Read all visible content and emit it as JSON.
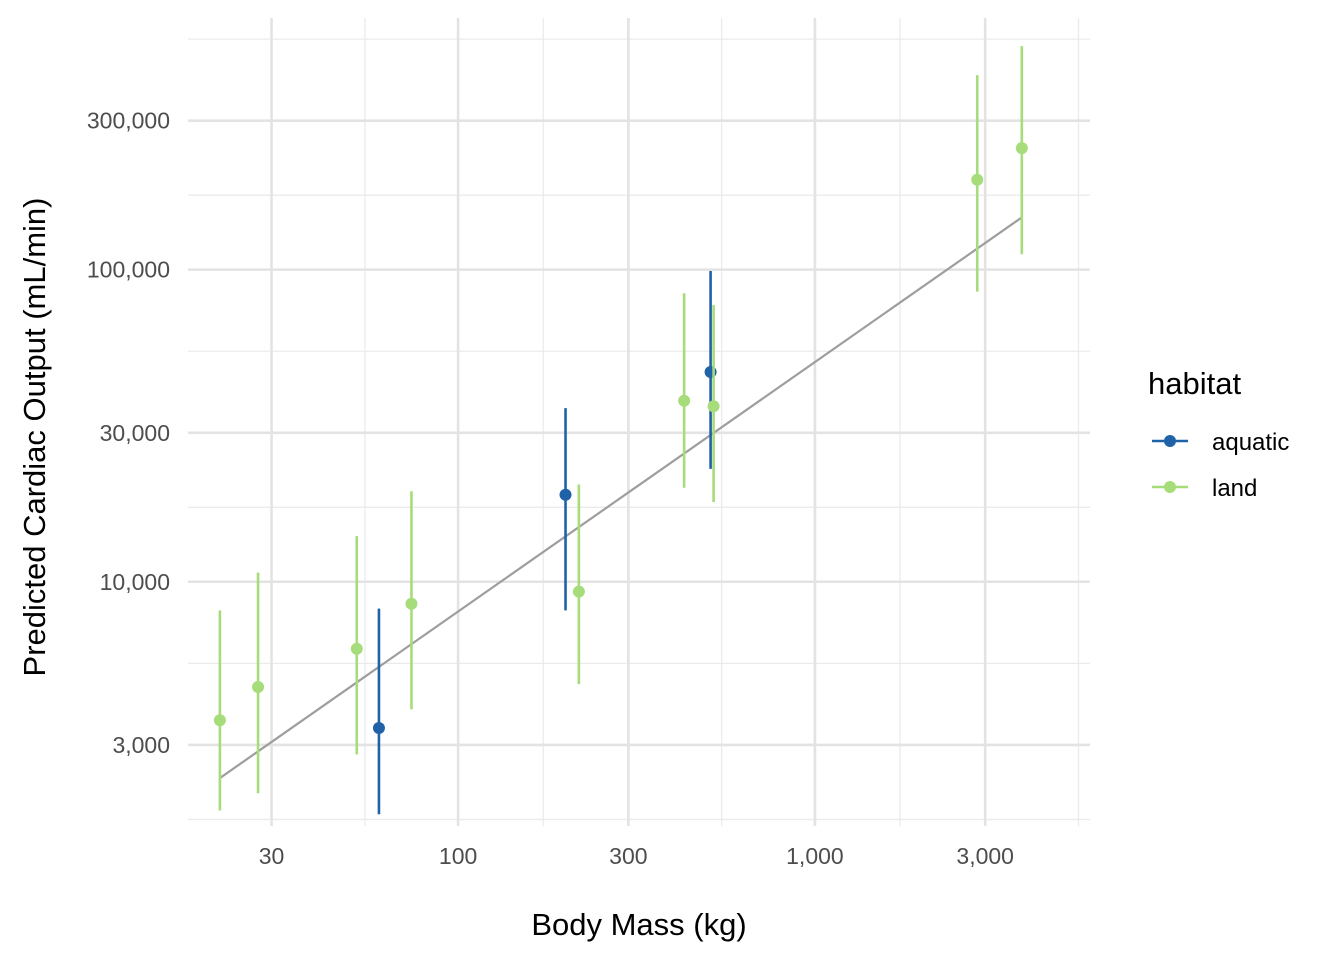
{
  "chart_data": {
    "type": "scatter",
    "xlabel": "Body Mass (kg)",
    "ylabel": "Predicted Cardiac Output (mL/min)",
    "x_scale": "log",
    "y_scale": "log",
    "xlim": [
      17.5,
      5900
    ],
    "ylim": [
      1650,
      640000
    ],
    "x_ticks": [
      {
        "value": 30,
        "label": "30"
      },
      {
        "value": 100,
        "label": "100"
      },
      {
        "value": 300,
        "label": "300"
      },
      {
        "value": 1000,
        "label": "1,000"
      },
      {
        "value": 3000,
        "label": "3,000"
      }
    ],
    "x_minor": [
      17.3,
      54.8,
      173.2,
      547.7,
      1732,
      5477
    ],
    "y_ticks": [
      {
        "value": 3000,
        "label": "3,000"
      },
      {
        "value": 10000,
        "label": "10,000"
      },
      {
        "value": 30000,
        "label": "30,000"
      },
      {
        "value": 100000,
        "label": "100,000"
      },
      {
        "value": 300000,
        "label": "300,000"
      }
    ],
    "y_minor": [
      1732,
      5477,
      17320,
      54770,
      173200,
      547700
    ],
    "grid": true,
    "legend": {
      "title": "habitat",
      "position": "right",
      "entries": [
        {
          "label": "aquatic",
          "color": "#1f62a8"
        },
        {
          "label": "land",
          "color": "#a6dc7a"
        }
      ]
    },
    "series": [
      {
        "name": "aquatic",
        "color": "#1f62a8",
        "points": [
          {
            "x": 60,
            "y": 3400,
            "ymin": 1800,
            "ymax": 8200
          },
          {
            "x": 200,
            "y": 19000,
            "ymin": 8100,
            "ymax": 36000
          },
          {
            "x": 510,
            "y": 47000,
            "ymin": 23000,
            "ymax": 99000
          }
        ]
      },
      {
        "name": "land",
        "color": "#a6dc7a",
        "points": [
          {
            "x": 21.5,
            "y": 3600,
            "ymin": 1850,
            "ymax": 8100
          },
          {
            "x": 27.5,
            "y": 4600,
            "ymin": 2100,
            "ymax": 10700
          },
          {
            "x": 52,
            "y": 6100,
            "ymin": 2800,
            "ymax": 14000
          },
          {
            "x": 74,
            "y": 8500,
            "ymin": 3900,
            "ymax": 19500
          },
          {
            "x": 218,
            "y": 9300,
            "ymin": 4700,
            "ymax": 20500
          },
          {
            "x": 430,
            "y": 38000,
            "ymin": 20000,
            "ymax": 84000
          },
          {
            "x": 520,
            "y": 36500,
            "ymin": 18000,
            "ymax": 77000
          },
          {
            "x": 2850,
            "y": 194000,
            "ymin": 85000,
            "ymax": 420000
          },
          {
            "x": 3800,
            "y": 245000,
            "ymin": 112000,
            "ymax": 520000
          }
        ]
      }
    ],
    "trend_line": {
      "color": "#9e9e9e",
      "from": {
        "x": 21.5,
        "y": 2350
      },
      "to": {
        "x": 3800,
        "y": 147000
      }
    }
  }
}
